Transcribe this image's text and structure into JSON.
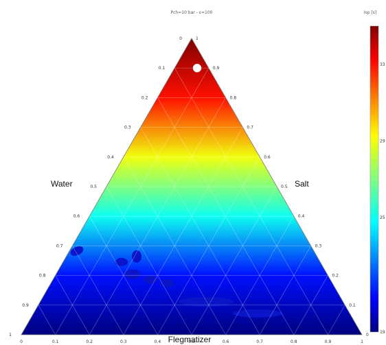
{
  "chart_data": {
    "type": "heatmap",
    "subtype": "ternary contour",
    "title": "Pch=10 bar - ε=100",
    "axes": {
      "left": {
        "label": "Water",
        "ticks": [
          "0",
          "0.1",
          "0.2",
          "0.3",
          "0.4",
          "0.5",
          "0.6",
          "0.7",
          "0.8",
          "0.9",
          "1"
        ]
      },
      "right": {
        "label": "Salt",
        "ticks": [
          "1",
          "0.9",
          "0.8",
          "0.7",
          "0.6",
          "0.5",
          "0.4",
          "0.3",
          "0.2",
          "0.1",
          "0"
        ]
      },
      "bottom": {
        "label": "Flegmatizer",
        "ticks": [
          "0",
          "0.1",
          "0.2",
          "0.3",
          "0.4",
          "0.5",
          "0.6",
          "0.7",
          "0.8",
          "0.9",
          "1"
        ]
      }
    },
    "colorbar": {
      "label": "Isp [s]",
      "ticks": [
        "19",
        "25",
        "29",
        "33"
      ],
      "range": [
        19,
        35
      ],
      "colormap": "jet"
    },
    "color_field": {
      "trend": "value increases with salt fraction",
      "isp_by_salt_fraction": [
        {
          "salt": 0.0,
          "isp": 19
        },
        {
          "salt": 0.2,
          "isp": 21
        },
        {
          "salt": 0.4,
          "isp": 25
        },
        {
          "salt": 0.6,
          "isp": 29
        },
        {
          "salt": 0.8,
          "isp": 33
        },
        {
          "salt": 1.0,
          "isp": 35
        }
      ]
    },
    "marker": {
      "description": "optimum composition",
      "color": "#ffffff",
      "salt": 0.9,
      "water": 0.05,
      "flegmatizer": 0.05
    },
    "grid": true,
    "legend": "none"
  }
}
